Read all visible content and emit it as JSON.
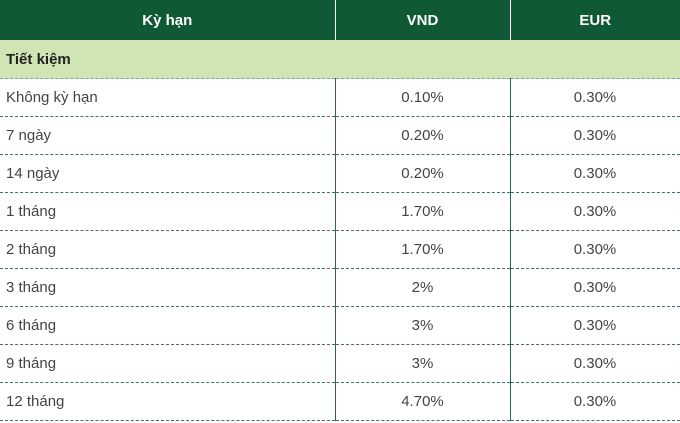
{
  "header": {
    "term": "Kỳ hạn",
    "vnd": "VND",
    "eur": "EUR"
  },
  "section": {
    "label": "Tiết kiệm"
  },
  "rows": [
    {
      "term": "Không kỳ hạn",
      "vnd": "0.10%",
      "eur": "0.30%"
    },
    {
      "term": "7 ngày",
      "vnd": "0.20%",
      "eur": "0.30%"
    },
    {
      "term": "14 ngày",
      "vnd": "0.20%",
      "eur": "0.30%"
    },
    {
      "term": "1 tháng",
      "vnd": "1.70%",
      "eur": "0.30%"
    },
    {
      "term": "2 tháng",
      "vnd": "1.70%",
      "eur": "0.30%"
    },
    {
      "term": "3 tháng",
      "vnd": "2%",
      "eur": "0.30%"
    },
    {
      "term": "6 tháng",
      "vnd": "3%",
      "eur": "0.30%"
    },
    {
      "term": "9 tháng",
      "vnd": "3%",
      "eur": "0.30%"
    },
    {
      "term": "12 tháng",
      "vnd": "4.70%",
      "eur": "0.30%"
    }
  ],
  "colors": {
    "header_bg": "#0f5a35",
    "section_bg": "#cfe5b4"
  }
}
